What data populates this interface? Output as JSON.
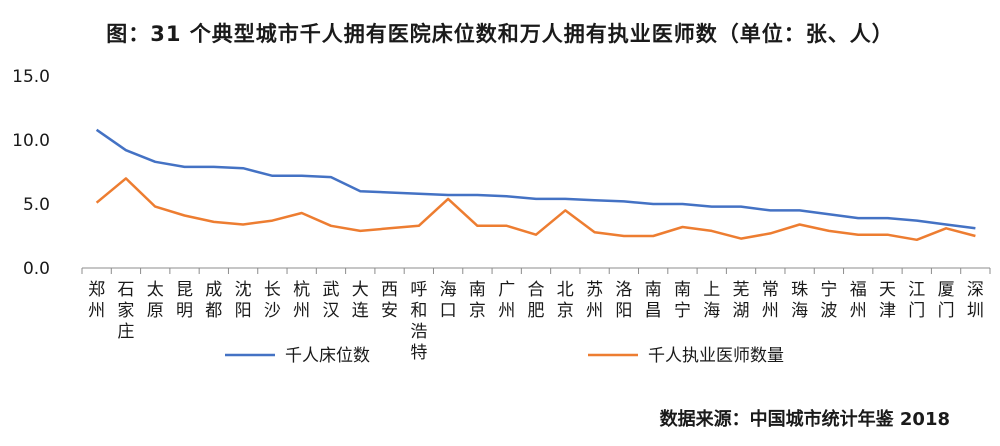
{
  "chart_data": {
    "type": "line",
    "title": "图：31 个典型城市千人拥有医院床位数和万人拥有执业医师数（单位：张、人）",
    "source": "数据来源：中国城市统计年鉴 2018",
    "ylim": [
      0,
      15
    ],
    "yticks": [
      "0.0",
      "5.0",
      "10.0",
      "15.0"
    ],
    "categories": [
      "郑州",
      "石家庄",
      "太原",
      "昆明",
      "成都",
      "沈阳",
      "长沙",
      "杭州",
      "武汉",
      "大连",
      "西安",
      "呼和浩特",
      "海口",
      "南京",
      "广州",
      "合肥",
      "北京",
      "苏州",
      "洛阳",
      "南昌",
      "南宁",
      "上海",
      "芜湖",
      "常州",
      "珠海",
      "宁波",
      "福州",
      "天津",
      "江门",
      "厦门",
      "深圳"
    ],
    "series": [
      {
        "name": "千人床位数",
        "color": "#4472c4",
        "values": [
          10.8,
          9.2,
          8.3,
          7.9,
          7.9,
          7.8,
          7.2,
          7.2,
          7.1,
          6.0,
          5.9,
          5.8,
          5.7,
          5.7,
          5.6,
          5.4,
          5.4,
          5.3,
          5.2,
          5.0,
          5.0,
          4.8,
          4.8,
          4.5,
          4.5,
          4.2,
          3.9,
          3.9,
          3.7,
          3.4,
          3.1
        ]
      },
      {
        "name": "千人执业医师数量",
        "color": "#ed7d31",
        "values": [
          5.1,
          7.0,
          4.8,
          4.1,
          3.6,
          3.4,
          3.7,
          4.3,
          3.3,
          2.9,
          3.1,
          3.3,
          5.4,
          3.3,
          3.3,
          2.6,
          4.5,
          2.8,
          2.5,
          2.5,
          3.2,
          2.9,
          2.3,
          2.7,
          3.4,
          2.9,
          2.6,
          2.6,
          2.2,
          3.1,
          2.5
        ]
      }
    ]
  }
}
